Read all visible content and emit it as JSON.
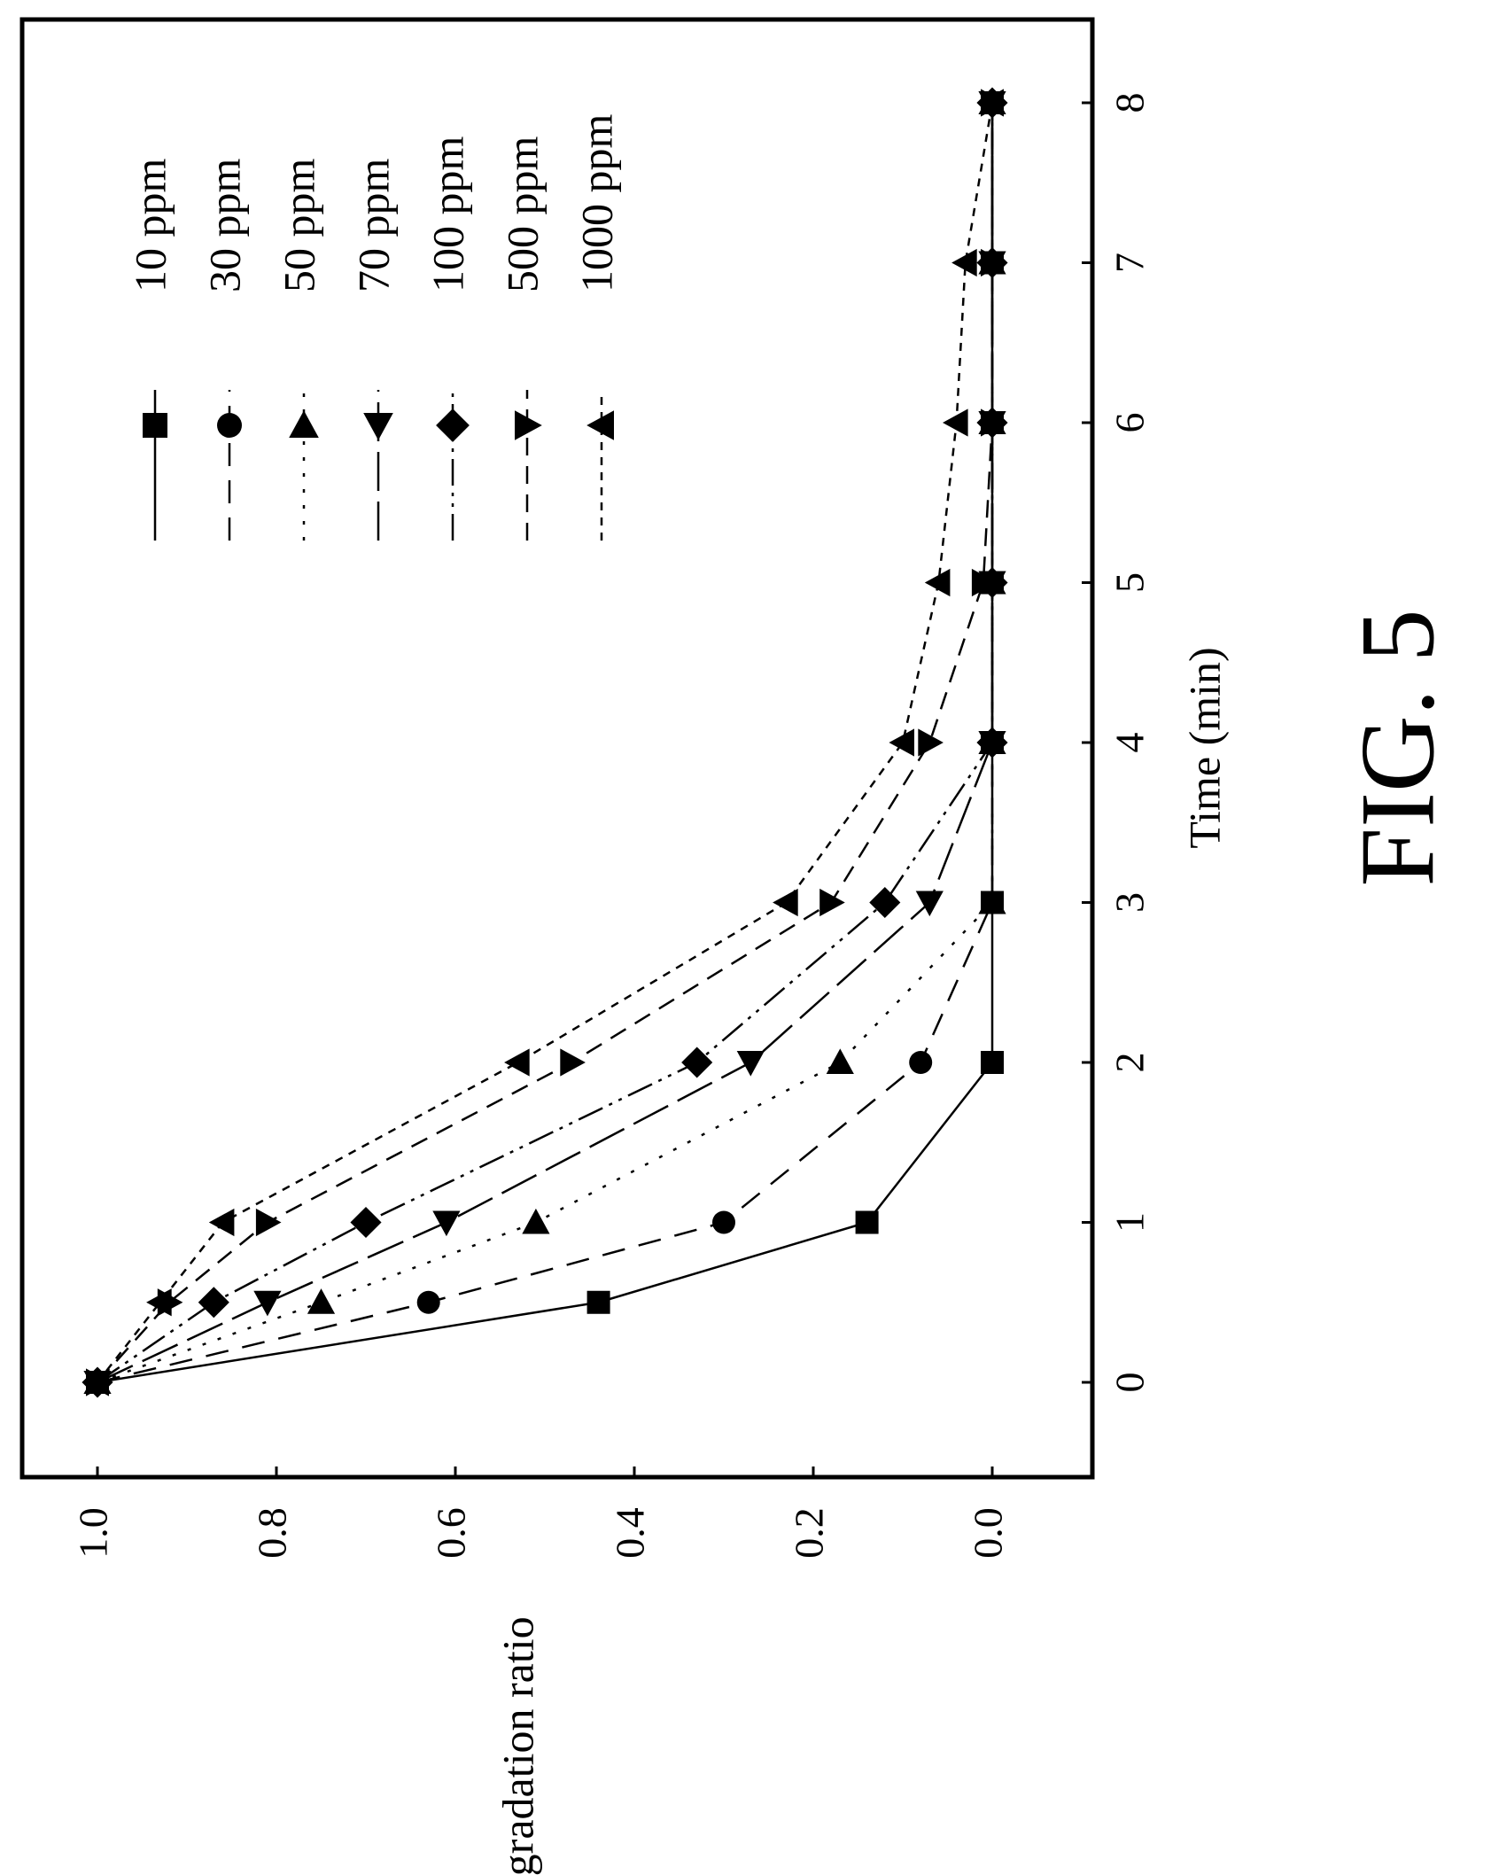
{
  "figure_label": "FIG. 5",
  "chart_data": {
    "type": "line",
    "title": "",
    "xlabel": "Time (min)",
    "ylabel": "Degradation ratio",
    "xlim": [
      -0.5,
      8.5
    ],
    "ylim": [
      -0.08,
      1.07
    ],
    "x_ticks": [
      0,
      1,
      2,
      3,
      4,
      5,
      6,
      7,
      8
    ],
    "y_ticks": [
      "0.0",
      "0.2",
      "0.4",
      "0.6",
      "0.8",
      "1.0"
    ],
    "legend_position": "top-right",
    "series": [
      {
        "name": "10 ppm",
        "marker": "square",
        "dash": "solid",
        "x": [
          0,
          0.5,
          1,
          2,
          3,
          4,
          5,
          6,
          7,
          8
        ],
        "y": [
          1.0,
          0.44,
          0.14,
          0.0,
          0.0,
          0.0,
          0.0,
          0.0,
          0.0,
          0.0
        ]
      },
      {
        "name": "30 ppm",
        "marker": "circle",
        "dash": "dash",
        "x": [
          0,
          0.5,
          1,
          2,
          3,
          4,
          5,
          6,
          7,
          8
        ],
        "y": [
          1.0,
          0.63,
          0.3,
          0.08,
          0.0,
          0.0,
          0.0,
          0.0,
          0.0,
          0.0
        ]
      },
      {
        "name": "50 ppm",
        "marker": "triangle-left",
        "dash": "dot",
        "x": [
          0,
          0.5,
          1,
          2,
          3,
          4,
          5,
          6,
          7,
          8
        ],
        "y": [
          1.0,
          0.75,
          0.51,
          0.17,
          0.0,
          0.0,
          0.0,
          0.0,
          0.0,
          0.0
        ]
      },
      {
        "name": "70 ppm",
        "marker": "triangle-right",
        "dash": "longdash",
        "x": [
          0,
          0.5,
          1,
          2,
          3,
          4,
          5,
          6,
          7,
          8
        ],
        "y": [
          1.0,
          0.81,
          0.61,
          0.27,
          0.07,
          0.0,
          0.0,
          0.0,
          0.0,
          0.0
        ]
      },
      {
        "name": "100 ppm",
        "marker": "diamond",
        "dash": "dashdotdot",
        "x": [
          0,
          0.5,
          1,
          2,
          3,
          4,
          5,
          6,
          7,
          8
        ],
        "y": [
          1.0,
          0.87,
          0.7,
          0.33,
          0.12,
          0.0,
          0.0,
          0.0,
          0.0,
          0.0
        ]
      },
      {
        "name": "500 ppm",
        "marker": "triangle-down",
        "dash": "mediumdash",
        "x": [
          0,
          0.5,
          1,
          2,
          3,
          4,
          5,
          6,
          7,
          8
        ],
        "y": [
          1.0,
          0.92,
          0.81,
          0.47,
          0.18,
          0.07,
          0.01,
          0.0,
          0.0,
          0.0
        ]
      },
      {
        "name": "1000 ppm",
        "marker": "triangle-up",
        "dash": "shortdash",
        "x": [
          0,
          0.5,
          1,
          2,
          3,
          4,
          5,
          6,
          7,
          8
        ],
        "y": [
          1.0,
          0.93,
          0.86,
          0.53,
          0.23,
          0.1,
          0.06,
          0.04,
          0.03,
          0.0
        ]
      }
    ]
  }
}
